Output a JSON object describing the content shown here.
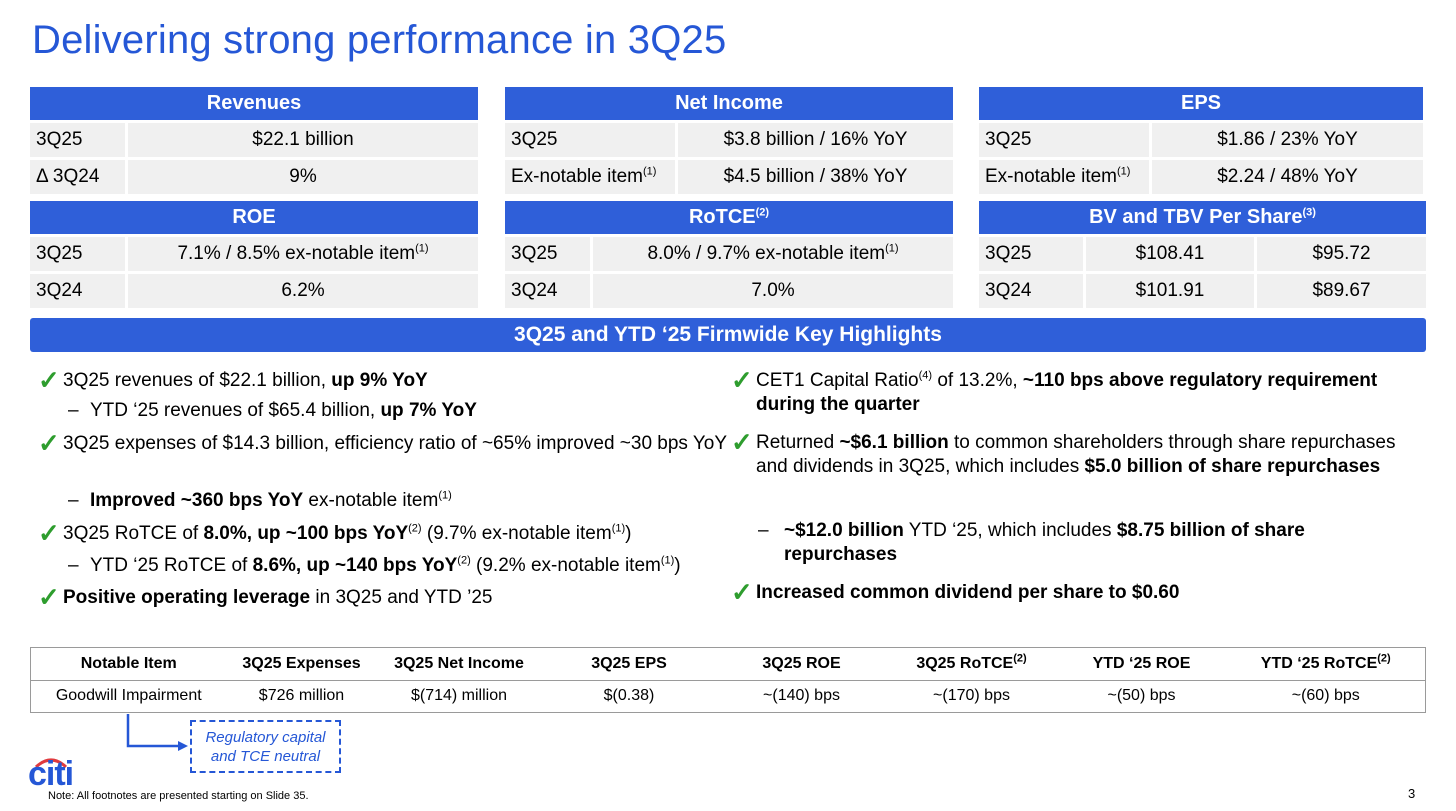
{
  "title": "Delivering strong performance in 3Q25",
  "kpis": {
    "revenues": {
      "header": "Revenues",
      "r1_label": "3Q25",
      "r1_value": "$22.1 billion",
      "r2_label": "Δ 3Q24",
      "r2_value": "9%"
    },
    "net_income": {
      "header": "Net Income",
      "r1_label": "3Q25",
      "r1_value": "$3.8 billion / 16% YoY",
      "r2_label": "Ex-notable item",
      "r2_label_sup": "(1)",
      "r2_value": "$4.5 billion / 38% YoY"
    },
    "eps": {
      "header": "EPS",
      "r1_label": "3Q25",
      "r1_value": "$1.86 / 23% YoY",
      "r2_label": "Ex-notable item",
      "r2_label_sup": "(1)",
      "r2_value": "$2.24 / 48% YoY"
    },
    "roe": {
      "header": "ROE",
      "r1_label": "3Q25",
      "r1_value": "7.1% / 8.5% ex-notable item",
      "r1_value_sup": "(1)",
      "r2_label": "3Q24",
      "r2_value": "6.2%"
    },
    "rotce": {
      "header": "RoTCE",
      "header_sup": "(2)",
      "r1_label": "3Q25",
      "r1_value": "8.0% / 9.7% ex-notable item",
      "r1_value_sup": "(1)",
      "r2_label": "3Q24",
      "r2_value": "7.0%"
    },
    "bv": {
      "header": "BV and TBV Per Share",
      "header_sup": "(3)",
      "r1_label": "3Q25",
      "r1_bv": "$108.41",
      "r1_tbv": "$95.72",
      "r2_label": "3Q24",
      "r2_bv": "$101.91",
      "r2_tbv": "$89.67"
    }
  },
  "highlights": {
    "banner": "3Q25 and YTD ‘25 Firmwide Key Highlights",
    "left": {
      "i1_a": "3Q25 revenues of $22.1 billion, ",
      "i1_b": "up 9% YoY",
      "s1_a": "YTD ‘25 revenues of $65.4 billion, ",
      "s1_b": "up 7% YoY",
      "i2": "3Q25 expenses of $14.3 billion, efficiency ratio of ~65% improved ~30 bps YoY",
      "s2_b": "Improved ~360 bps YoY",
      "s2_a": " ex-notable item",
      "s2_sup": "(1)",
      "i3_a": "3Q25 RoTCE of ",
      "i3_b": "8.0%, up ~100 bps YoY",
      "i3_sup": "(2)",
      "i3_c": " (9.7% ex-notable item",
      "i3_sup2": "(1)",
      "i3_d": ")",
      "s3_a": "YTD ‘25 RoTCE of ",
      "s3_b": "8.6%, up ~140 bps YoY",
      "s3_sup": "(2)",
      "s3_c": " (9.2% ex-notable item",
      "s3_sup2": "(1)",
      "s3_d": ")",
      "i4_b": "Positive operating leverage",
      "i4_a": " in  3Q25 and YTD ’25"
    },
    "right": {
      "i1_a": "CET1 Capital Ratio",
      "i1_sup": "(4)",
      "i1_b": " of 13.2%, ",
      "i1_c": "~110 bps above regulatory requirement during the quarter",
      "i2_a": "Returned ",
      "i2_b": "~$6.1 billion",
      "i2_c": " to common shareholders through share repurchases and dividends in 3Q25, which includes ",
      "i2_d": "$5.0 billion of share repurchases",
      "s1_b": "~$12.0 billion",
      "s1_a": " YTD ‘25, which includes ",
      "s1_c": "$8.75 billion of share repurchases",
      "i3_b": "Increased common dividend per share to $0.60"
    }
  },
  "notable_table": {
    "headers": [
      "Notable Item",
      "3Q25 Expenses",
      "3Q25 Net Income",
      "3Q25 EPS",
      "3Q25 ROE",
      "3Q25 RoTCE",
      "YTD ‘25 ROE",
      "YTD ‘25 RoTCE"
    ],
    "header_sup": "(2)",
    "row": [
      "Goodwill Impairment",
      "$726 million",
      "$(714) million",
      "$(0.38)",
      "~(140) bps",
      "~(170) bps",
      "~(50) bps",
      "~(60) bps"
    ]
  },
  "callout": {
    "line1": "Regulatory capital",
    "line2": "and TCE neutral"
  },
  "logo": "citi",
  "footnote": "Note:  All footnotes are presented starting on Slide 35.",
  "page_number": "3",
  "colors": {
    "brand_blue": "#2f5fd9",
    "title_blue": "#2557d6",
    "check_green": "#2e9d2e",
    "cell_gray": "#f0f0f0"
  }
}
